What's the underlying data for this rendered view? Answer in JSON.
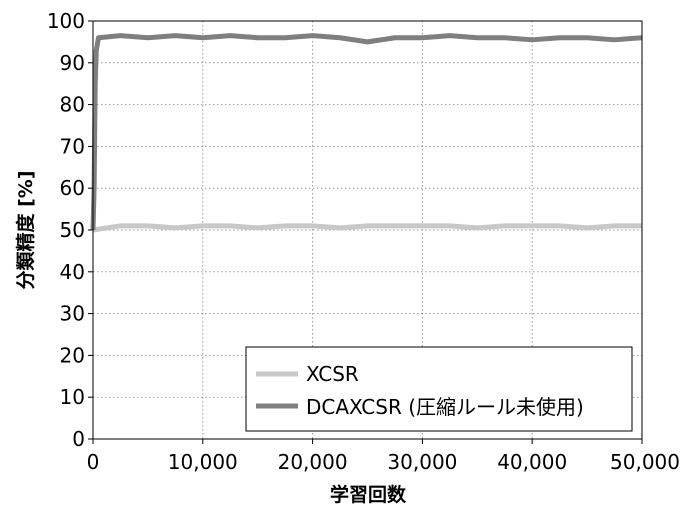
{
  "chart_data": {
    "type": "line",
    "title": "",
    "xlabel": "学習回数",
    "ylabel": "分類精度 [%]",
    "xlim": [
      0,
      50000
    ],
    "ylim": [
      0,
      100
    ],
    "x_ticks": [
      0,
      10000,
      20000,
      30000,
      40000,
      50000
    ],
    "x_tick_labels": [
      "0",
      "10,000",
      "20,000",
      "30,000",
      "40,000",
      "50,000"
    ],
    "y_ticks": [
      0,
      10,
      20,
      30,
      40,
      50,
      60,
      70,
      80,
      90,
      100
    ],
    "y_tick_labels": [
      "0",
      "10",
      "20",
      "30",
      "40",
      "50",
      "60",
      "70",
      "80",
      "90",
      "100"
    ],
    "grid": true,
    "legend_position": "bottom-right",
    "series": [
      {
        "name": "XCSR",
        "color": "#c8c8c8",
        "x": [
          0,
          2500,
          5000,
          7500,
          10000,
          12500,
          15000,
          17500,
          20000,
          22500,
          25000,
          27500,
          30000,
          32500,
          35000,
          37500,
          40000,
          42500,
          45000,
          47500,
          50000
        ],
        "y": [
          50,
          51,
          51,
          50.5,
          51,
          51,
          50.5,
          51,
          51,
          50.5,
          51,
          51,
          51,
          51,
          50.5,
          51,
          51,
          51,
          50.5,
          51,
          51
        ]
      },
      {
        "name": "DCAXCSR (圧縮ルール未使用)",
        "color": "#7f7f7f",
        "x": [
          0,
          100,
          200,
          300,
          500,
          2500,
          5000,
          7500,
          10000,
          12500,
          15000,
          17500,
          20000,
          22500,
          25000,
          27500,
          30000,
          32500,
          35000,
          37500,
          40000,
          42500,
          45000,
          47500,
          50000
        ],
        "y": [
          50,
          60,
          85,
          93,
          96,
          96.5,
          96,
          96.5,
          96,
          96.5,
          96,
          96,
          96.5,
          96,
          95,
          96,
          96,
          96.5,
          96,
          96,
          95.5,
          96,
          96,
          95.5,
          96
        ]
      }
    ]
  }
}
